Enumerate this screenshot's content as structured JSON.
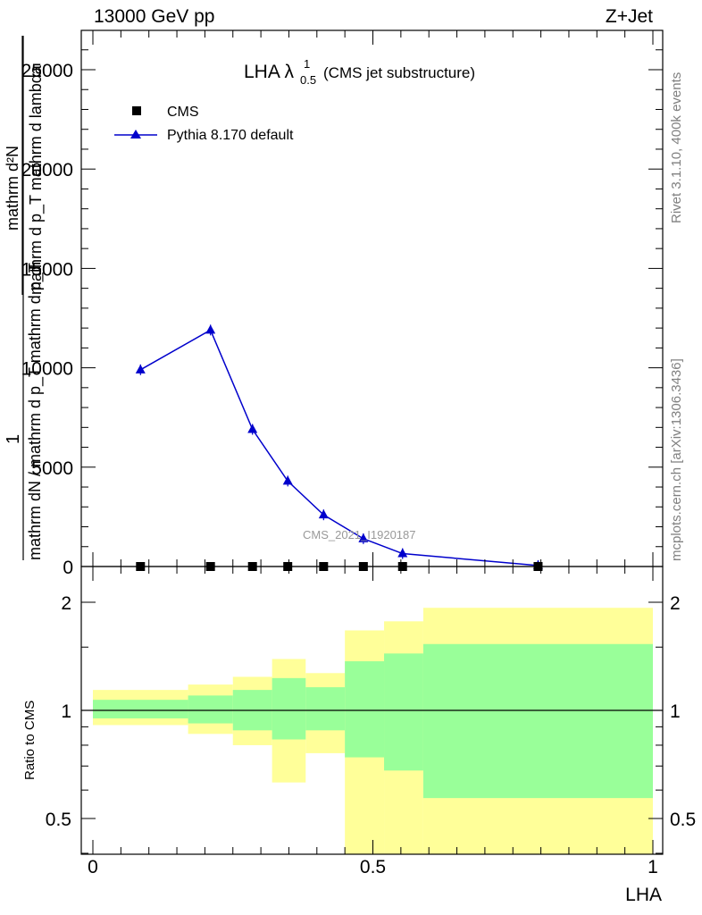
{
  "header": {
    "left": "13000 GeV pp",
    "right": "Z+Jet"
  },
  "side_labels": {
    "rivet": "Rivet 3.1.10,  400k events",
    "mcplots": "mcplots.cern.ch [arXiv:1306.3436]"
  },
  "plot_title": {
    "main": "LHA λ",
    "sup": "1",
    "sub": "0.5",
    "suffix": " (CMS jet substructure)"
  },
  "watermark": "CMS_2021_I1920187",
  "legend": {
    "cms": "CMS",
    "pythia": "Pythia 8.170 default"
  },
  "ylabel_main": {
    "num": "1",
    "den": "mathrm dN / mathrm d p_T mathrm d p_T",
    "den_sub": "T",
    "den_num": "mathrm d²N",
    "den_den": "mathrm d p_T mathrm d lambda"
  },
  "ylabel_ratio": "Ratio to CMS",
  "xlabel": "LHA",
  "colors": {
    "pythia": "#0000cc",
    "band_yellow": "#ffff99",
    "band_green": "#99ff99",
    "data": "#000000"
  },
  "chart_data": [
    {
      "type": "line",
      "xlim": [
        -0.02,
        1.02
      ],
      "ylim": [
        0,
        27000
      ],
      "yticks": [
        0,
        5000,
        10000,
        15000,
        20000,
        25000
      ],
      "ytick_labels": [
        "0",
        "5000",
        "10000",
        "15000",
        "20000",
        "25000"
      ],
      "series": [
        {
          "name": "CMS",
          "marker": "square",
          "x": [
            0.085,
            0.21,
            0.285,
            0.348,
            0.412,
            0.483,
            0.553,
            0.795
          ],
          "y": [
            0,
            0,
            0,
            0,
            0,
            0,
            0,
            0
          ]
        },
        {
          "name": "Pythia 8.170 default",
          "marker": "triangle",
          "x": [
            0.085,
            0.21,
            0.285,
            0.348,
            0.412,
            0.483,
            0.553,
            0.795
          ],
          "y": [
            9900,
            11900,
            6900,
            4300,
            2600,
            1400,
            650,
            50
          ]
        }
      ]
    },
    {
      "type": "area",
      "ylabel": "Ratio to CMS",
      "xlabel": "LHA",
      "xlim": [
        -0.02,
        1.02
      ],
      "ylim": [
        0.33,
        2.28
      ],
      "xticks": [
        0,
        0.5,
        1
      ],
      "xtick_labels": [
        "0",
        "0.5",
        "1"
      ],
      "yticks": [
        0.5,
        1,
        2
      ],
      "ytick_labels": [
        "0.5",
        "1",
        "2"
      ],
      "reference_line": 1,
      "bins": [
        0,
        0.17,
        0.25,
        0.32,
        0.38,
        0.45,
        0.52,
        0.59,
        1.0
      ],
      "yellow_band": {
        "upper": [
          1.14,
          1.18,
          1.24,
          1.39,
          1.27,
          1.67,
          1.77,
          1.93
        ],
        "lower": [
          0.91,
          0.86,
          0.8,
          0.63,
          0.76,
          0.33,
          0.33,
          0.33
        ]
      },
      "green_band": {
        "upper": [
          1.07,
          1.1,
          1.14,
          1.23,
          1.16,
          1.37,
          1.44,
          1.53
        ],
        "lower": [
          0.95,
          0.92,
          0.88,
          0.83,
          0.88,
          0.74,
          0.68,
          0.57
        ]
      }
    }
  ]
}
